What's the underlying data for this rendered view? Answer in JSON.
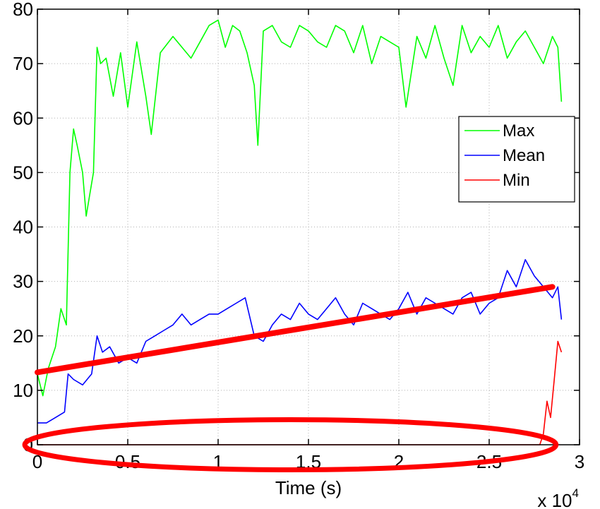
{
  "chart_data": {
    "type": "line",
    "title": "",
    "xlabel": "Time (s)",
    "ylabel": "",
    "x_exponent_label": "x 10",
    "x_exponent": "4",
    "xlim": [
      0,
      30000
    ],
    "ylim": [
      0,
      80
    ],
    "grid": true,
    "legend_position": "right",
    "xticks": [
      0,
      5000,
      10000,
      15000,
      20000,
      25000,
      30000
    ],
    "xtick_labels": [
      "0",
      "0.5",
      "1",
      "1.5",
      "2",
      "2.5",
      "3"
    ],
    "yticks": [
      0,
      10,
      20,
      30,
      40,
      50,
      60,
      70,
      80
    ],
    "ytick_labels": [
      "0",
      "10",
      "20",
      "30",
      "40",
      "50",
      "60",
      "70",
      "80"
    ],
    "series": [
      {
        "name": "Max",
        "color": "#00ff00",
        "x": [
          0,
          300,
          600,
          1000,
          1300,
          1600,
          1800,
          2000,
          2200,
          2500,
          2700,
          2900,
          3100,
          3300,
          3500,
          3800,
          4200,
          4600,
          5000,
          5500,
          6000,
          6300,
          6800,
          7500,
          8000,
          8500,
          9000,
          9500,
          10000,
          10400,
          10800,
          11200,
          11600,
          12000,
          12200,
          12500,
          13000,
          13500,
          14000,
          14500,
          15000,
          15500,
          16000,
          16500,
          17000,
          17500,
          18000,
          18500,
          19000,
          19500,
          20000,
          20400,
          21000,
          21500,
          22000,
          22500,
          23000,
          23500,
          24000,
          24500,
          25000,
          25500,
          26000,
          26500,
          27000,
          27500,
          28000,
          28500,
          28800,
          29000
        ],
        "values": [
          13,
          9,
          14,
          18,
          25,
          22,
          50,
          58,
          55,
          50,
          42,
          46,
          50,
          73,
          70,
          71,
          64,
          72,
          62,
          74,
          64,
          57,
          72,
          75,
          73,
          71,
          74,
          77,
          78,
          73,
          77,
          76,
          72,
          66,
          55,
          76,
          77,
          74,
          73,
          77,
          76,
          74,
          73,
          77,
          76,
          72,
          77,
          70,
          75,
          74,
          73,
          62,
          75,
          71,
          77,
          71,
          66,
          77,
          72,
          75,
          73,
          77,
          71,
          74,
          76,
          73,
          70,
          75,
          73,
          63
        ]
      },
      {
        "name": "Mean",
        "color": "#0000ff",
        "x": [
          0,
          500,
          1000,
          1500,
          1700,
          2000,
          2500,
          3000,
          3300,
          3600,
          4000,
          4500,
          5000,
          5500,
          6000,
          6500,
          7000,
          7500,
          8000,
          8500,
          9000,
          9500,
          10000,
          10500,
          11000,
          11500,
          12000,
          12500,
          13000,
          13500,
          14000,
          14500,
          15000,
          15500,
          16000,
          16500,
          17000,
          17500,
          18000,
          18500,
          19000,
          19500,
          20000,
          20500,
          21000,
          21500,
          22000,
          22500,
          23000,
          23500,
          24000,
          24500,
          25000,
          25500,
          26000,
          26500,
          27000,
          27500,
          28000,
          28500,
          28800,
          29000
        ],
        "values": [
          4,
          4,
          5,
          6,
          13,
          12,
          11,
          13,
          20,
          17,
          18,
          15,
          16,
          15,
          19,
          20,
          21,
          22,
          24,
          22,
          23,
          24,
          24,
          25,
          26,
          27,
          20,
          19,
          22,
          24,
          23,
          26,
          24,
          23,
          25,
          27,
          24,
          22,
          26,
          25,
          24,
          23,
          25,
          28,
          24,
          27,
          26,
          25,
          24,
          27,
          28,
          24,
          26,
          27,
          32,
          29,
          34,
          31,
          29,
          27,
          29,
          23
        ]
      },
      {
        "name": "Min",
        "color": "#ff0000",
        "x": [
          0,
          5000,
          10000,
          15000,
          20000,
          25000,
          27800,
          28000,
          28200,
          28400,
          28600,
          28800,
          29000
        ],
        "values": [
          0,
          0,
          0,
          0,
          0,
          0,
          0,
          2,
          8,
          5,
          12,
          19,
          17
        ]
      }
    ],
    "annotations": [
      {
        "type": "trend-line",
        "color": "#ff0000",
        "x": [
          0,
          28500
        ],
        "values": [
          13.3,
          29
        ]
      },
      {
        "type": "ellipse",
        "color": "#ff0000",
        "center_x": 14000,
        "center_y": 0,
        "rx": 14700,
        "ry": 4.6
      }
    ]
  }
}
